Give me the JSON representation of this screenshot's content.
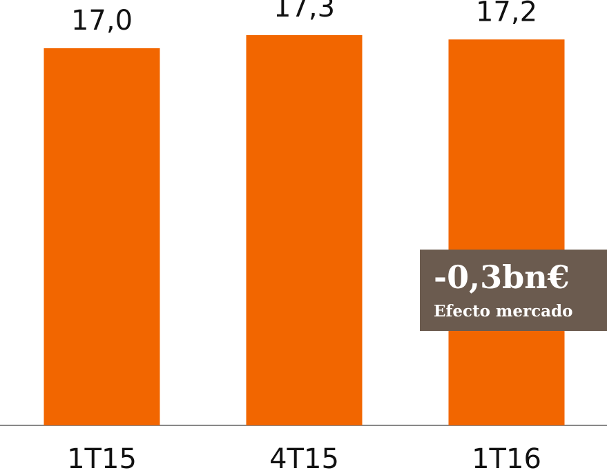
{
  "chart_data": {
    "type": "bar",
    "categories": [
      "1T15",
      "4T15",
      "1T16"
    ],
    "values": [
      17.0,
      17.3,
      17.2
    ],
    "value_labels": [
      "17,0",
      "17,3",
      "17,2"
    ],
    "color": "#f26600",
    "ylim": [
      8.4,
      18.1
    ],
    "annotation": {
      "text": "-0,3bn€",
      "subtext": "Efecto mercado",
      "color": "#6b5b4f"
    }
  }
}
